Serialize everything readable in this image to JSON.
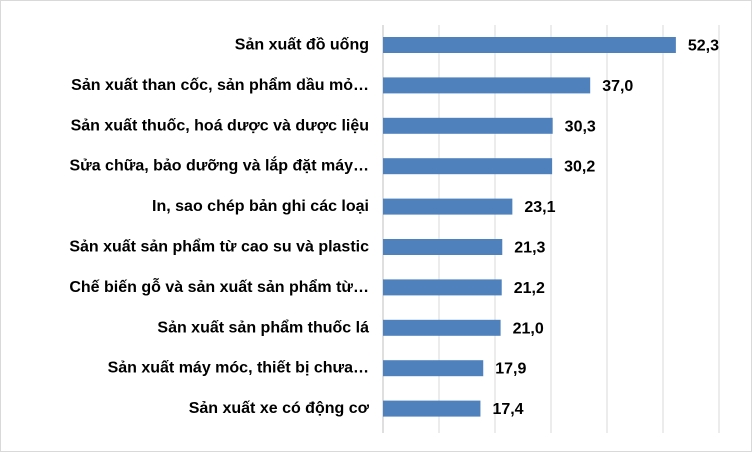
{
  "colors": {
    "bar": "#4F81BD",
    "grid": "#D9D9D9",
    "text": "#000000",
    "background": "#FFFFFF"
  },
  "chart_data": {
    "type": "bar",
    "orientation": "horizontal",
    "categories": [
      "Sản xuất đồ uống",
      "Sản xuất than cốc, sản phẩm dầu mỏ…",
      "Sản xuất thuốc, hoá dược và dược liệu",
      "Sửa chữa, bảo dưỡng và lắp đặt máy…",
      "In, sao chép bản ghi các loại",
      "Sản xuất sản phẩm từ cao su và plastic",
      "Chế biến gỗ và sản xuất sản phẩm từ…",
      "Sản xuất sản phẩm thuốc lá",
      "Sản xuất máy móc, thiết bị chưa…",
      "Sản xuất xe có động cơ"
    ],
    "values": [
      52.3,
      37.0,
      30.3,
      30.2,
      23.1,
      21.3,
      21.2,
      21.0,
      17.9,
      17.4
    ],
    "value_labels": [
      "52,3",
      "37,0",
      "30,3",
      "30,2",
      "23,1",
      "21,3",
      "21,2",
      "21,0",
      "17,9",
      "17,4"
    ],
    "xlim": [
      0,
      60
    ],
    "grid": "vertical",
    "legend": "none"
  }
}
